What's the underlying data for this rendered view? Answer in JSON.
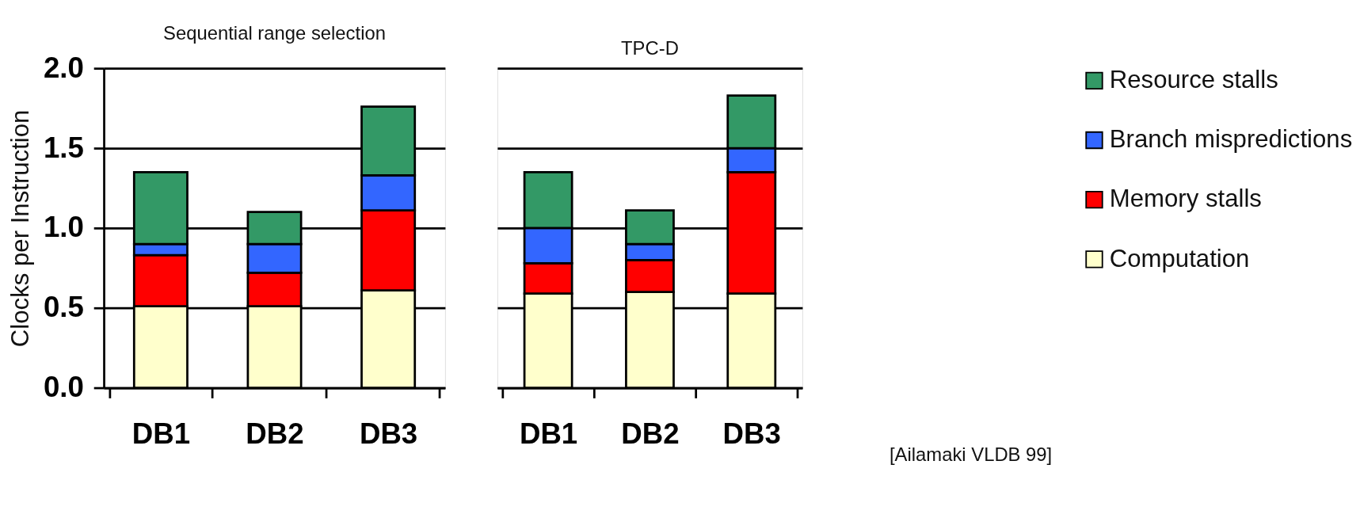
{
  "chart_data": [
    {
      "type": "bar",
      "stacked": true,
      "title": "Sequential range selection",
      "ylabel": "Clocks per Instruction",
      "categories": [
        "DB1",
        "DB2",
        "DB3"
      ],
      "ylim": [
        0,
        2.0
      ],
      "yticks": [
        {
          "value": 0,
          "label": "0.0"
        },
        0.5,
        {
          "value": 1,
          "label": "1.0"
        },
        1.5,
        {
          "value": 2,
          "label": "2.0"
        }
      ],
      "grid": "y",
      "legend": "right",
      "series": [
        {
          "name": "Computation",
          "color": "#ffffcc",
          "values": [
            0.51,
            0.51,
            0.61
          ]
        },
        {
          "name": "Memory stalls",
          "color": "#ff0000",
          "values": [
            0.32,
            0.21,
            0.5
          ]
        },
        {
          "name": "Branch mispredictions",
          "color": "#3366ff",
          "values": [
            0.07,
            0.18,
            0.22
          ]
        },
        {
          "name": "Resource stalls",
          "color": "#339966",
          "values": [
            0.45,
            0.2,
            0.43
          ]
        }
      ]
    },
    {
      "type": "bar",
      "stacked": true,
      "title": "TPC-D",
      "categories": [
        "DB1",
        "DB2",
        "DB3"
      ],
      "ylim": [
        0,
        2.0
      ],
      "yticks": [
        0,
        0.5,
        1,
        1.5,
        2
      ],
      "grid": "y",
      "legend": "right",
      "tick_labels": "x",
      "annotations": [
        "[Ailamaki VLDB 99]"
      ],
      "series": [
        {
          "name": "Computation",
          "color": "#ffffcc",
          "values": [
            0.59,
            0.6,
            0.59
          ]
        },
        {
          "name": "Memory stalls",
          "color": "#ff0000",
          "values": [
            0.19,
            0.2,
            0.76
          ]
        },
        {
          "name": "Branch mispredictions",
          "color": "#3366ff",
          "values": [
            0.22,
            0.1,
            0.15
          ]
        },
        {
          "name": "Resource stalls",
          "color": "#339966",
          "values": [
            0.35,
            0.21,
            0.33
          ]
        }
      ]
    }
  ]
}
